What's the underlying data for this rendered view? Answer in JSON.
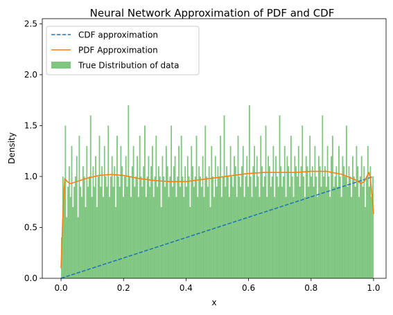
{
  "chart_data": {
    "type": "bar",
    "title": "Neural Network Approximation of PDF and CDF",
    "xlabel": "x",
    "ylabel": "Density",
    "xlim": [
      -0.06,
      1.04
    ],
    "ylim": [
      0,
      2.55
    ],
    "xticks": [
      0.0,
      0.2,
      0.4,
      0.6,
      0.8,
      1.0
    ],
    "xtick_labels": [
      "0.0",
      "0.2",
      "0.4",
      "0.6",
      "0.8",
      "1.0"
    ],
    "yticks": [
      0.0,
      0.5,
      1.0,
      1.5,
      2.0,
      2.5
    ],
    "ytick_labels": [
      "0.0",
      "0.5",
      "1.0",
      "1.5",
      "2.0",
      "2.5"
    ],
    "grid": false,
    "legend_position": "upper-left",
    "series": [
      {
        "name": "CDF approximation",
        "kind": "line",
        "style": "dashed",
        "color": "#1f77b4",
        "x": [
          0.0,
          0.25,
          0.5,
          0.75,
          1.0
        ],
        "y": [
          0.0,
          0.25,
          0.5,
          0.75,
          1.0
        ]
      },
      {
        "name": "PDF Approximation",
        "kind": "line",
        "style": "solid",
        "color": "#ff7f0e",
        "x": [
          0.0,
          0.005,
          0.012,
          0.02,
          0.03,
          0.05,
          0.08,
          0.12,
          0.16,
          0.2,
          0.25,
          0.3,
          0.35,
          0.4,
          0.45,
          0.5,
          0.55,
          0.6,
          0.65,
          0.7,
          0.75,
          0.8,
          0.85,
          0.9,
          0.94,
          0.96,
          0.97,
          0.98,
          0.985,
          0.99,
          0.995,
          1.0
        ],
        "y": [
          0.1,
          0.55,
          0.98,
          0.95,
          0.93,
          0.95,
          0.98,
          1.01,
          1.02,
          1.01,
          0.98,
          0.96,
          0.95,
          0.95,
          0.97,
          0.99,
          1.01,
          1.03,
          1.04,
          1.04,
          1.04,
          1.05,
          1.05,
          1.02,
          0.97,
          0.93,
          0.95,
          1.01,
          1.04,
          0.98,
          0.82,
          0.63
        ]
      },
      {
        "name": "True Distribution of data",
        "kind": "histogram",
        "color": "#2ca02c",
        "opacity": 0.6,
        "bin_range": [
          0.0,
          1.0
        ],
        "bin_count": 250,
        "values": [
          0.4,
          1.0,
          0.9,
          1.5,
          0.6,
          0.9,
          1.1,
          0.8,
          1.3,
          0.7,
          0.9,
          1.0,
          1.2,
          0.6,
          1.4,
          0.9,
          0.8,
          1.1,
          1.0,
          0.7,
          1.3,
          0.9,
          1.0,
          1.6,
          0.8,
          1.1,
          0.9,
          1.2,
          0.7,
          1.0,
          1.4,
          0.9,
          1.1,
          0.8,
          1.3,
          1.0,
          0.9,
          1.5,
          0.8,
          1.0,
          1.2,
          0.9,
          1.1,
          0.7,
          1.4,
          1.0,
          0.9,
          1.3,
          1.1,
          0.8,
          1.0,
          1.2,
          0.9,
          1.7,
          1.0,
          0.8,
          1.1,
          1.3,
          0.9,
          1.0,
          1.2,
          0.8,
          1.4,
          1.0,
          0.9,
          1.1,
          1.5,
          0.8,
          1.0,
          1.2,
          0.9,
          1.1,
          1.3,
          0.8,
          1.0,
          1.4,
          0.9,
          1.1,
          1.0,
          0.7,
          1.2,
          1.0,
          0.9,
          1.3,
          1.1,
          0.8,
          1.0,
          1.5,
          0.9,
          1.1,
          1.2,
          0.8,
          1.0,
          1.3,
          0.9,
          1.4,
          1.0,
          0.8,
          1.1,
          0.9,
          1.2,
          1.0,
          0.7,
          1.3,
          1.1,
          0.9,
          1.0,
          1.4,
          0.8,
          1.1,
          1.0,
          0.9,
          1.2,
          0.8,
          1.5,
          1.0,
          0.9,
          1.1,
          0.7,
          1.3,
          1.0,
          0.8,
          1.2,
          0.9,
          1.1,
          1.0,
          1.4,
          0.8,
          1.0,
          1.6,
          0.9,
          1.1,
          1.0,
          0.8,
          1.3,
          1.0,
          0.9,
          1.2,
          1.1,
          0.8,
          1.4,
          1.0,
          0.9,
          1.1,
          1.3,
          0.8,
          1.0,
          1.2,
          0.9,
          1.7,
          1.0,
          0.8,
          1.1,
          1.3,
          0.9,
          1.2,
          1.0,
          0.8,
          1.4,
          1.1,
          0.9,
          1.0,
          1.5,
          0.8,
          1.2,
          1.1,
          0.9,
          1.0,
          1.3,
          0.8,
          1.2,
          1.0,
          0.9,
          1.6,
          1.1,
          0.9,
          1.0,
          1.3,
          0.8,
          1.2,
          1.1,
          0.9,
          1.4,
          1.0,
          0.8,
          1.2,
          1.1,
          1.0,
          1.3,
          0.9,
          1.1,
          1.5,
          1.0,
          0.8,
          1.2,
          1.1,
          0.9,
          1.4,
          1.0,
          1.1,
          0.9,
          1.3,
          1.0,
          0.8,
          1.2,
          1.1,
          0.9,
          1.6,
          1.0,
          1.1,
          0.9,
          1.3,
          1.0,
          0.8,
          1.2,
          1.4,
          0.9,
          1.0,
          1.1,
          0.9,
          1.3,
          1.0,
          0.8,
          1.2,
          1.1,
          1.0,
          1.5,
          0.9,
          1.1,
          1.0,
          0.8,
          1.2,
          1.0,
          0.9,
          1.3,
          1.1,
          0.8,
          1.0,
          1.2,
          0.9,
          1.1,
          0.7,
          1.0,
          1.3,
          0.9,
          1.1,
          0.8,
          1.0
        ]
      }
    ]
  }
}
